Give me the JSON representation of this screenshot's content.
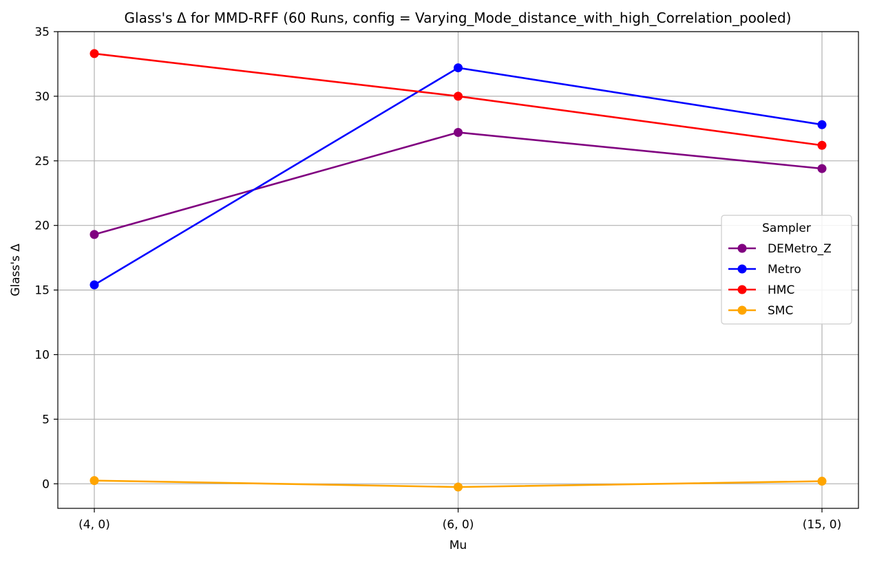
{
  "chart_data": {
    "type": "line",
    "title": "Glass's Δ for MMD-RFF (60 Runs, config = Varying_Mode_distance_with_high_Correlation_pooled)",
    "xlabel": "Mu",
    "ylabel": "Glass's Δ",
    "categories": [
      "(4, 0)",
      "(6, 0)",
      "(15, 0)"
    ],
    "ylim": [
      -1.9,
      35
    ],
    "yticks": [
      0,
      5,
      10,
      15,
      20,
      25,
      30,
      35
    ],
    "grid": true,
    "legend": {
      "title": "Sampler",
      "placement": "center-right"
    },
    "series": [
      {
        "name": "DEMetro_Z",
        "color": "#800080",
        "values": [
          19.3,
          27.2,
          24.4
        ]
      },
      {
        "name": "Metro",
        "color": "#0000ff",
        "values": [
          15.4,
          32.2,
          27.8
        ]
      },
      {
        "name": "HMC",
        "color": "#ff0000",
        "values": [
          33.3,
          30.0,
          26.2
        ]
      },
      {
        "name": "SMC",
        "color": "#ffa500",
        "values": [
          0.25,
          -0.25,
          0.2
        ]
      }
    ]
  }
}
